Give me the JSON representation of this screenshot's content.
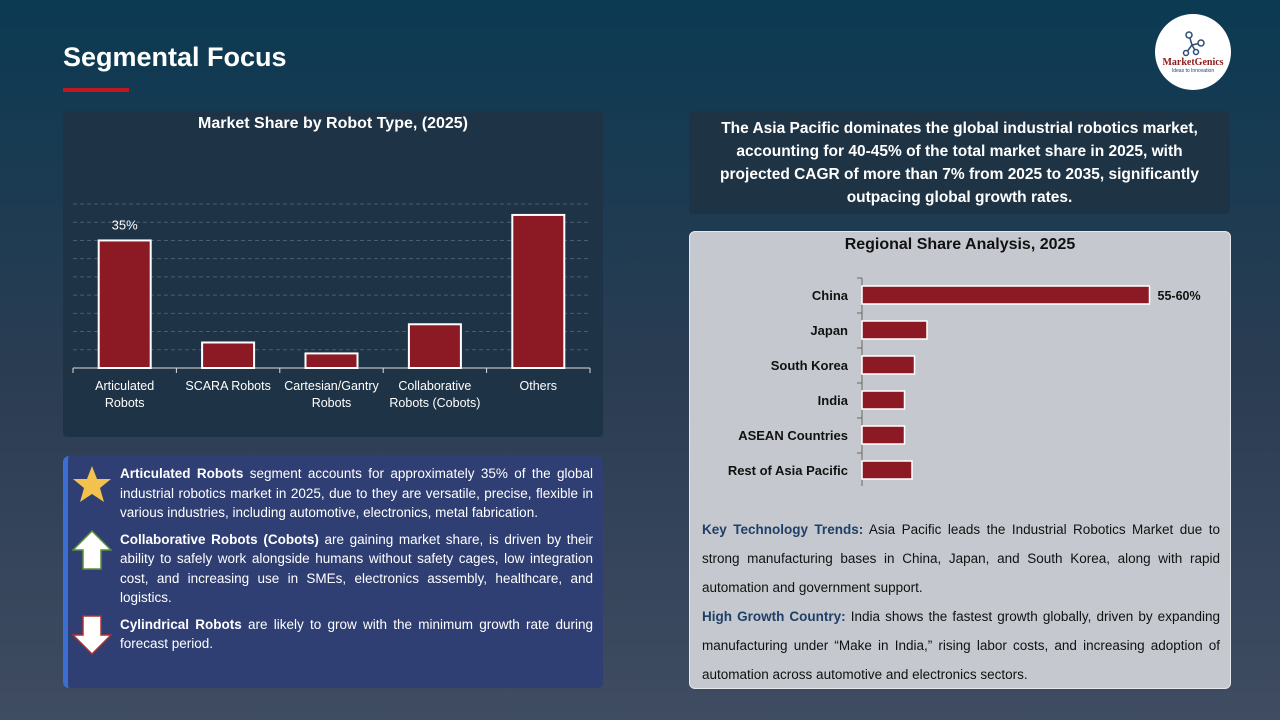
{
  "header": {
    "title": "Segmental Focus",
    "logo_text": "MarketGenics",
    "logo_tagline": "Ideas to Innovation"
  },
  "callout": "The Asia Pacific dominates the global industrial robotics market, accounting for 40-45% of the total market share in 2025, with projected CAGR of more than 7% from 2025 to 2035, significantly outpacing global growth rates.",
  "chart_data": [
    {
      "type": "bar",
      "title": "Market Share by Robot Type, (2025)",
      "categories": [
        "Articulated Robots",
        "SCARA Robots",
        "Cartesian/Gantry Robots",
        "Collaborative Robots (Cobots)",
        "Others"
      ],
      "values": [
        35,
        7,
        4,
        12,
        42
      ],
      "data_labels": [
        "35%",
        "",
        "",
        "",
        ""
      ],
      "ylim": [
        0,
        45
      ],
      "grid": true,
      "bar_color": "#8b1a25"
    },
    {
      "type": "bar",
      "orientation": "horizontal",
      "title": "Regional Share Analysis, 2025",
      "categories": [
        "China",
        "Japan",
        "South Korea",
        "India",
        "ASEAN Countries",
        "Rest of Asia Pacific"
      ],
      "values": [
        57.5,
        13,
        10.5,
        8.5,
        8.5,
        10
      ],
      "data_labels": [
        "55-60%",
        "",
        "",
        "",
        "",
        ""
      ],
      "bar_color": "#8b1a25"
    }
  ],
  "trends": [
    {
      "label": "Key Technology Trends:",
      "text": " Asia Pacific leads the Industrial Robotics Market due to strong manufacturing bases in China, Japan, and South Korea, along with rapid automation and government support."
    },
    {
      "label": "High Growth Country:",
      "text": " India shows the fastest growth globally, driven by expanding manufacturing under “Make in India,” rising labor costs, and increasing adoption of automation across automotive and electronics sectors."
    }
  ],
  "bullets": [
    {
      "icon": "star-icon",
      "bold": "Articulated Robots",
      "text": " segment accounts for approximately 35% of the global industrial robotics market in 2025, due to they are versatile, precise, flexible in various industries, including automotive, electronics, metal fabrication."
    },
    {
      "icon": "arrow-up-icon",
      "bold": "Collaborative Robots (Cobots)",
      "text": " are gaining market share, is driven by their ability to safely work alongside humans without safety cages, low integration cost, and increasing use in SMEs, electronics assembly, healthcare, and logistics."
    },
    {
      "icon": "arrow-down-icon",
      "bold": "Cylindrical Robots",
      "text": " are likely to grow with the minimum growth rate during forecast period."
    }
  ]
}
